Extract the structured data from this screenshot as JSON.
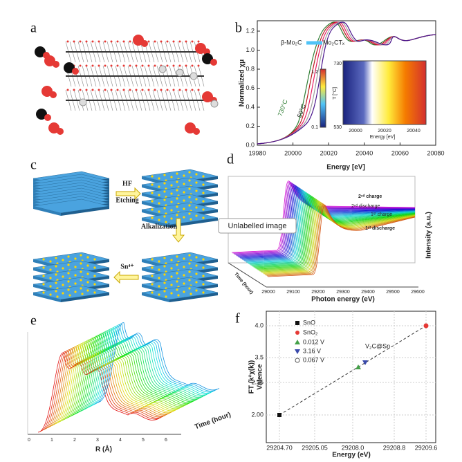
{
  "panels": {
    "a": {
      "label": "a"
    },
    "b": {
      "label": "b",
      "x_label": "Energy [eV]",
      "y_label": "Normalized χμ",
      "x_ticks": [
        "19980",
        "20000",
        "20020",
        "20040",
        "20060",
        "20080"
      ],
      "y_ticks": [
        "0.0",
        "0.2",
        "0.4",
        "0.6",
        "0.8",
        "1.0",
        "1.2"
      ],
      "annotations": [
        "β-Mo₂C",
        "Mo₂CTₓ",
        "730°C",
        "50°C"
      ],
      "inset": {
        "x_label": "Energy [eV]",
        "x_ticks": [
          "20000",
          "20020",
          "20040"
        ],
        "colorbar_ticks": [
          "1.2",
          "0.1"
        ],
        "t_ticks": [
          "730",
          "530"
        ],
        "t_label": "T [°C]"
      }
    },
    "c": {
      "label": "c",
      "steps": [
        "HF",
        "Etching",
        "Alkalization",
        "Sn⁴⁺"
      ]
    },
    "d": {
      "label": "d",
      "annotations": [
        "2ⁿᵈ charge",
        "2ⁿᵈ discharge",
        "1ˢᵗ charge",
        "1ˢᵗ discharge"
      ],
      "x_label": "Photon energy (eV)",
      "y_label": "Intensity (a.u.)",
      "z_label": "Time (hour)",
      "x_ticks": [
        "29000",
        "29100",
        "29200",
        "29300",
        "29400",
        "29500",
        "29600"
      ]
    },
    "e": {
      "label": "e",
      "x_label": "R (Å)",
      "z_label": "Time (hour)",
      "x_ticks": [
        "0",
        "1",
        "2",
        "3",
        "4",
        "5",
        "6"
      ]
    },
    "f": {
      "label": "f",
      "legend": [
        "SnO",
        "SnO₂",
        "0.012 V",
        "3.16 V",
        "0.067 V"
      ],
      "annotation": "V₂C@Sn",
      "y_label": "FT (k²χ(k))",
      "y_label2": "Valence",
      "y_ticks": [
        "4.0",
        "3.5",
        "2.25",
        "2.00"
      ],
      "x_label": "Energy (eV)",
      "x_ticks": [
        "29204.70",
        "29205.05",
        "29208.0",
        "29208.8",
        "29209.6"
      ]
    }
  },
  "tooltip": "Unlabelled image"
}
